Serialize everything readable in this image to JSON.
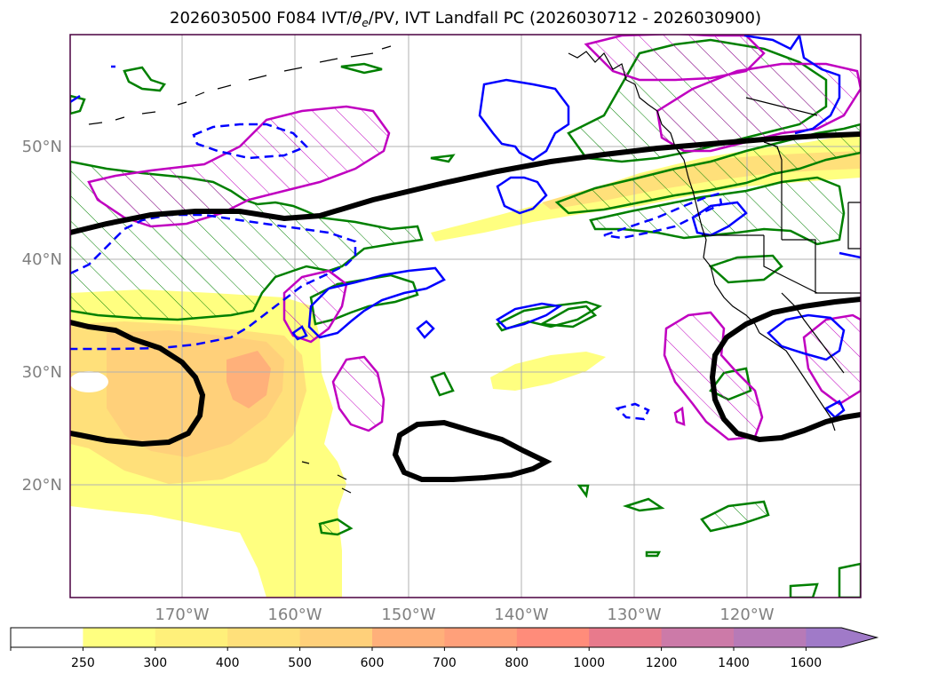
{
  "title": "2026030500 F084 IVT/θe/PV, IVT Landfall PC (2026030712 - 2026030900)",
  "title_parts": {
    "prefix": "2026030500 F084 IVT/",
    "theta": "θ",
    "sub": "e",
    "suffix": "/PV, IVT Landfall PC (2026030712 - 2026030900)"
  },
  "map": {
    "lat_labels": [
      "50°N",
      "40°N",
      "30°N",
      "20°N"
    ],
    "lon_labels": [
      "170°W",
      "160°W",
      "150°W",
      "140°W",
      "130°W",
      "120°W"
    ],
    "lat_values": [
      50,
      40,
      30,
      20
    ],
    "lon_values": [
      -170,
      -160,
      -150,
      -140,
      -130,
      -120
    ]
  },
  "colorbar": {
    "labels": [
      "250",
      "300",
      "400",
      "500",
      "600",
      "700",
      "800",
      "1000",
      "1200",
      "1400",
      "1600"
    ],
    "colors": [
      "#ffffff",
      "#ffff80",
      "#fff07a",
      "#ffe07a",
      "#ffd07a",
      "#ffb07a",
      "#ffa07a",
      "#ff8c7a",
      "#e87a8c",
      "#cc7aa8",
      "#b77ab7",
      "#a07ac8"
    ],
    "extend": "max"
  },
  "colors": {
    "ivt_fill_light": "#ffff80",
    "ivt_fill_mid": "#ffd07a",
    "ivt_fill_high": "#ffb07a",
    "theta_e_contour": "#000000",
    "pv_contour": "#0000ff",
    "landfall_contour": "#008000",
    "hatch_contour": "#c000c0",
    "grid": "#b0b0b0",
    "coast": "#000000"
  }
}
